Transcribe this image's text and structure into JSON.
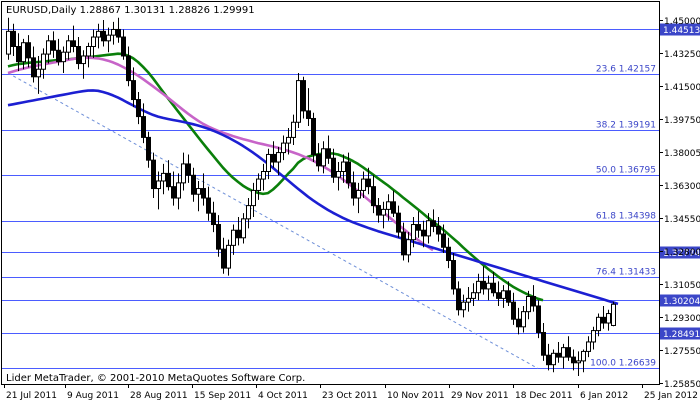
{
  "header": {
    "symbol_line": "EURUSD,Daily  1.28867 1.30131 1.28826 1.29991"
  },
  "footer": {
    "copyright": "Lider MetaTrader, © 2001-2010 MetaQuotes Software Corp."
  },
  "colors": {
    "background": "#ffffff",
    "axis": "#000000",
    "hline": "#4b5cff",
    "fib_text": "#3b46c8",
    "label_box": "#3b46c8",
    "label_text": "#ffffff",
    "candle": "#000000",
    "ma_green": "#0a7f0a",
    "ma_magenta": "#c764c8",
    "ma_blue": "#1c1fd2",
    "trendline": "#6e8fd8"
  },
  "chart_data": {
    "type": "candlestick",
    "title": "EURUSD,Daily",
    "ohlc_header": {
      "open": 1.28867,
      "high": 1.30131,
      "low": 1.28826,
      "close": 1.29991
    },
    "ylim": [
      1.2578,
      1.4595
    ],
    "price_ticks": [
      "1.45000",
      "1.43250",
      "1.41500",
      "1.39750",
      "1.38005",
      "1.36300",
      "1.34550",
      "1.32800",
      "1.31050",
      "1.29300",
      "1.27550",
      "1.25850"
    ],
    "date_ticks": [
      "21 Jul 2011",
      "9 Aug 2011",
      "28 Aug 2011",
      "15 Sep 2011",
      "4 Oct 2011",
      "23 Oct 2011",
      "10 Nov 2011",
      "29 Nov 2011",
      "18 Dec 2011",
      "6 Jan 2012",
      "25 Jan 2012"
    ],
    "candles": [
      [
        1.432,
        1.4512,
        1.429,
        1.444
      ],
      [
        1.444,
        1.448,
        1.431,
        1.436
      ],
      [
        1.436,
        1.443,
        1.423,
        1.428
      ],
      [
        1.428,
        1.44,
        1.424,
        1.438
      ],
      [
        1.438,
        1.442,
        1.425,
        1.43
      ],
      [
        1.43,
        1.436,
        1.417,
        1.42
      ],
      [
        1.42,
        1.431,
        1.411,
        1.424
      ],
      [
        1.424,
        1.435,
        1.419,
        1.432
      ],
      [
        1.432,
        1.442,
        1.427,
        1.439
      ],
      [
        1.439,
        1.444,
        1.43,
        1.434
      ],
      [
        1.434,
        1.44,
        1.426,
        1.428
      ],
      [
        1.428,
        1.436,
        1.422,
        1.433
      ],
      [
        1.433,
        1.442,
        1.429,
        1.439
      ],
      [
        1.439,
        1.447,
        1.433,
        1.436
      ],
      [
        1.436,
        1.441,
        1.424,
        1.427
      ],
      [
        1.427,
        1.434,
        1.419,
        1.431
      ],
      [
        1.431,
        1.438,
        1.425,
        1.436
      ],
      [
        1.436,
        1.445,
        1.43,
        1.441
      ],
      [
        1.441,
        1.448,
        1.435,
        1.444
      ],
      [
        1.444,
        1.45,
        1.436,
        1.439
      ],
      [
        1.439,
        1.446,
        1.433,
        1.442
      ],
      [
        1.442,
        1.449,
        1.437,
        1.445
      ],
      [
        1.445,
        1.4512,
        1.438,
        1.441
      ],
      [
        1.441,
        1.445,
        1.429,
        1.431
      ],
      [
        1.431,
        1.436,
        1.415,
        1.418
      ],
      [
        1.418,
        1.425,
        1.404,
        1.408
      ],
      [
        1.408,
        1.412,
        1.395,
        1.399
      ],
      [
        1.399,
        1.406,
        1.385,
        1.388
      ],
      [
        1.388,
        1.391,
        1.372,
        1.376
      ],
      [
        1.376,
        1.38,
        1.356,
        1.361
      ],
      [
        1.361,
        1.37,
        1.35,
        1.365
      ],
      [
        1.365,
        1.374,
        1.358,
        1.369
      ],
      [
        1.369,
        1.376,
        1.36,
        1.362
      ],
      [
        1.362,
        1.37,
        1.352,
        1.356
      ],
      [
        1.356,
        1.369,
        1.35,
        1.364
      ],
      [
        1.364,
        1.38,
        1.36,
        1.374
      ],
      [
        1.374,
        1.379,
        1.364,
        1.368
      ],
      [
        1.368,
        1.372,
        1.354,
        1.358
      ],
      [
        1.358,
        1.365,
        1.349,
        1.361
      ],
      [
        1.361,
        1.369,
        1.352,
        1.356
      ],
      [
        1.356,
        1.362,
        1.344,
        1.348
      ],
      [
        1.348,
        1.354,
        1.338,
        1.342
      ],
      [
        1.342,
        1.347,
        1.325,
        1.329
      ],
      [
        1.329,
        1.335,
        1.316,
        1.319
      ],
      [
        1.319,
        1.334,
        1.315,
        1.331
      ],
      [
        1.331,
        1.342,
        1.326,
        1.339
      ],
      [
        1.339,
        1.346,
        1.331,
        1.335
      ],
      [
        1.335,
        1.348,
        1.332,
        1.345
      ],
      [
        1.345,
        1.356,
        1.34,
        1.352
      ],
      [
        1.352,
        1.364,
        1.346,
        1.36
      ],
      [
        1.36,
        1.369,
        1.355,
        1.366
      ],
      [
        1.366,
        1.374,
        1.36,
        1.37
      ],
      [
        1.37,
        1.382,
        1.366,
        1.379
      ],
      [
        1.379,
        1.386,
        1.372,
        1.375
      ],
      [
        1.375,
        1.383,
        1.368,
        1.38
      ],
      [
        1.38,
        1.389,
        1.376,
        1.385
      ],
      [
        1.385,
        1.393,
        1.379,
        1.388
      ],
      [
        1.388,
        1.4,
        1.384,
        1.396
      ],
      [
        1.396,
        1.422,
        1.393,
        1.418
      ],
      [
        1.418,
        1.42,
        1.398,
        1.402
      ],
      [
        1.402,
        1.414,
        1.394,
        1.398
      ],
      [
        1.398,
        1.401,
        1.375,
        1.379
      ],
      [
        1.379,
        1.385,
        1.37,
        1.373
      ],
      [
        1.373,
        1.386,
        1.369,
        1.382
      ],
      [
        1.382,
        1.389,
        1.374,
        1.377
      ],
      [
        1.377,
        1.382,
        1.364,
        1.367
      ],
      [
        1.367,
        1.375,
        1.36,
        1.37
      ],
      [
        1.37,
        1.379,
        1.364,
        1.375
      ],
      [
        1.375,
        1.38,
        1.361,
        1.364
      ],
      [
        1.364,
        1.37,
        1.352,
        1.356
      ],
      [
        1.356,
        1.364,
        1.348,
        1.36
      ],
      [
        1.36,
        1.37,
        1.356,
        1.366
      ],
      [
        1.366,
        1.372,
        1.358,
        1.362
      ],
      [
        1.362,
        1.368,
        1.348,
        1.352
      ],
      [
        1.352,
        1.356,
        1.343,
        1.347
      ],
      [
        1.347,
        1.354,
        1.34,
        1.35
      ],
      [
        1.35,
        1.358,
        1.344,
        1.354
      ],
      [
        1.354,
        1.36,
        1.346,
        1.348
      ],
      [
        1.348,
        1.352,
        1.335,
        1.338
      ],
      [
        1.338,
        1.343,
        1.323,
        1.326
      ],
      [
        1.326,
        1.338,
        1.322,
        1.334
      ],
      [
        1.334,
        1.346,
        1.33,
        1.342
      ],
      [
        1.342,
        1.349,
        1.335,
        1.339
      ],
      [
        1.339,
        1.344,
        1.33,
        1.336
      ],
      [
        1.336,
        1.348,
        1.332,
        1.344
      ],
      [
        1.344,
        1.35,
        1.338,
        1.341
      ],
      [
        1.341,
        1.346,
        1.333,
        1.337
      ],
      [
        1.337,
        1.342,
        1.327,
        1.33
      ],
      [
        1.33,
        1.335,
        1.319,
        1.323
      ],
      [
        1.323,
        1.327,
        1.305,
        1.308
      ],
      [
        1.308,
        1.312,
        1.294,
        1.297
      ],
      [
        1.297,
        1.305,
        1.293,
        1.301
      ],
      [
        1.301,
        1.309,
        1.296,
        1.303
      ],
      [
        1.303,
        1.311,
        1.299,
        1.306
      ],
      [
        1.306,
        1.316,
        1.302,
        1.312
      ],
      [
        1.312,
        1.32,
        1.305,
        1.308
      ],
      [
        1.308,
        1.315,
        1.302,
        1.311
      ],
      [
        1.311,
        1.317,
        1.304,
        1.306
      ],
      [
        1.306,
        1.312,
        1.299,
        1.303
      ],
      [
        1.303,
        1.31,
        1.298,
        1.307
      ],
      [
        1.307,
        1.312,
        1.299,
        1.301
      ],
      [
        1.301,
        1.306,
        1.289,
        1.292
      ],
      [
        1.292,
        1.298,
        1.284,
        1.288
      ],
      [
        1.288,
        1.299,
        1.285,
        1.296
      ],
      [
        1.296,
        1.307,
        1.292,
        1.304
      ],
      [
        1.304,
        1.31,
        1.296,
        1.299
      ],
      [
        1.299,
        1.302,
        1.282,
        1.285
      ],
      [
        1.285,
        1.29,
        1.27,
        1.273
      ],
      [
        1.273,
        1.279,
        1.265,
        1.268
      ],
      [
        1.268,
        1.276,
        1.264,
        1.274
      ],
      [
        1.274,
        1.28,
        1.269,
        1.272
      ],
      [
        1.272,
        1.279,
        1.266,
        1.277
      ],
      [
        1.277,
        1.283,
        1.27,
        1.272
      ],
      [
        1.272,
        1.276,
        1.265,
        1.269
      ],
      [
        1.269,
        1.275,
        1.262,
        1.27
      ],
      [
        1.27,
        1.276,
        1.264,
        1.275
      ],
      [
        1.275,
        1.283,
        1.272,
        1.28
      ],
      [
        1.28,
        1.288,
        1.276,
        1.286
      ],
      [
        1.286,
        1.295,
        1.283,
        1.293
      ],
      [
        1.293,
        1.299,
        1.287,
        1.29
      ],
      [
        1.29,
        1.297,
        1.286,
        1.295
      ],
      [
        1.2887,
        1.3013,
        1.2883,
        1.2999
      ]
    ],
    "horizontal_lines": [
      {
        "price": 1.44513,
        "label": "1.44513",
        "boxed": true
      },
      {
        "price": 1.42157,
        "label": "23.6 1.42157",
        "boxed": false
      },
      {
        "price": 1.39191,
        "label": "38.2 1.39191",
        "boxed": false
      },
      {
        "price": 1.36795,
        "label": "50.0 1.36795",
        "boxed": false
      },
      {
        "price": 1.34398,
        "label": "61.8 1.34398",
        "boxed": false
      },
      {
        "price": 1.32774,
        "label": "1.32774",
        "boxed": true
      },
      {
        "price": 1.31433,
        "label": "76.4 1.31433",
        "boxed": false
      },
      {
        "price": 1.30204,
        "label": "1.30204",
        "boxed": true
      },
      {
        "price": 1.28491,
        "label": "1.28491",
        "boxed": true
      },
      {
        "price": 1.26639,
        "label": "100.0 1.26639",
        "boxed": false
      }
    ],
    "series": [
      {
        "kind": "ma",
        "color_key": "ma_green",
        "values": [
          1.4255,
          1.4262,
          1.4267,
          1.427,
          1.4274,
          1.4276,
          1.4278,
          1.428,
          1.4283,
          1.4286,
          1.4288,
          1.429,
          1.4292,
          1.4295,
          1.4298,
          1.43,
          1.4303,
          1.4306,
          1.431,
          1.4313,
          1.4316,
          1.4319,
          1.4322,
          1.432,
          1.4312,
          1.4298,
          1.4278,
          1.4253,
          1.4225,
          1.4192,
          1.4157,
          1.4121,
          1.4086,
          1.4052,
          1.4018,
          1.3984,
          1.395,
          1.3916,
          1.3882,
          1.3849,
          1.3816,
          1.3784,
          1.3752,
          1.372,
          1.3692,
          1.3667,
          1.3645,
          1.3625,
          1.3609,
          1.3596,
          1.3587,
          1.3582,
          1.3586,
          1.3605,
          1.363,
          1.3658,
          1.3688,
          1.3714,
          1.3746,
          1.3765,
          1.3778,
          1.3786,
          1.3791,
          1.3795,
          1.3796,
          1.3795,
          1.379,
          1.378,
          1.3768,
          1.3755,
          1.374,
          1.3722,
          1.3703,
          1.3684,
          1.3664,
          1.3645,
          1.3626,
          1.3605,
          1.3585,
          1.3563,
          1.3542,
          1.3521,
          1.35,
          1.3478,
          1.3456,
          1.3436,
          1.3415,
          1.3394,
          1.3371,
          1.3348,
          1.3325,
          1.33,
          1.3276,
          1.3253,
          1.323,
          1.3208,
          1.3186,
          1.3166,
          1.3146,
          1.3127,
          1.3109,
          1.3092,
          1.3077,
          1.3063,
          1.305,
          1.3039,
          1.3028,
          1.302
        ]
      },
      {
        "kind": "ma",
        "color_key": "ma_magenta",
        "values": [
          1.422,
          1.4228,
          1.4236,
          1.4243,
          1.4249,
          1.4255,
          1.426,
          1.4265,
          1.427,
          1.4275,
          1.428,
          1.4285,
          1.429,
          1.4294,
          1.4298,
          1.43,
          1.4301,
          1.43,
          1.4297,
          1.4292,
          1.4285,
          1.4276,
          1.4265,
          1.4252,
          1.4238,
          1.4223,
          1.4206,
          1.4188,
          1.4169,
          1.415,
          1.413,
          1.411,
          1.4089,
          1.4068,
          1.4047,
          1.4026,
          1.4005,
          1.3986,
          1.3968,
          1.3952,
          1.3938,
          1.3926,
          1.3915,
          1.3905,
          1.3896,
          1.3887,
          1.3879,
          1.3871,
          1.3864,
          1.3857,
          1.385,
          1.3844,
          1.3838,
          1.3832,
          1.3825,
          1.3818,
          1.381,
          1.3801,
          1.3792,
          1.3781,
          1.377,
          1.3757,
          1.3743,
          1.3728,
          1.3712,
          1.3695,
          1.3677,
          1.3658,
          1.3638,
          1.3617,
          1.3596,
          1.3574,
          1.3552,
          1.353,
          1.3508,
          1.3486,
          1.3464,
          1.3442,
          1.342,
          1.3399,
          1.3378,
          1.3358,
          1.3339,
          1.332,
          1.3302,
          1.3285
        ]
      },
      {
        "kind": "ma",
        "color_key": "ma_blue",
        "values": [
          1.405,
          1.4055,
          1.406,
          1.4065,
          1.407,
          1.4075,
          1.408,
          1.4085,
          1.409,
          1.4095,
          1.41,
          1.4105,
          1.411,
          1.4115,
          1.412,
          1.4124,
          1.4127,
          1.4128,
          1.4126,
          1.412,
          1.4112,
          1.4102,
          1.409,
          1.4077,
          1.4063,
          1.4049,
          1.4035,
          1.4022,
          1.401,
          1.3999,
          1.399,
          1.3983,
          1.3977,
          1.3972,
          1.3967,
          1.3962,
          1.3956,
          1.395,
          1.3943,
          1.3935,
          1.3926,
          1.3916,
          1.3905,
          1.3893,
          1.388,
          1.3866,
          1.3851,
          1.3835,
          1.3818,
          1.38,
          1.3781,
          1.3761,
          1.374,
          1.3719,
          1.3697,
          1.3675,
          1.3653,
          1.3631,
          1.3609,
          1.3588,
          1.3567,
          1.3548,
          1.353,
          1.3513,
          1.3497,
          1.3482,
          1.3468,
          1.3455,
          1.3443,
          1.3432,
          1.3422,
          1.3412,
          1.3403,
          1.3394,
          1.3385,
          1.3377,
          1.3369,
          1.3361,
          1.3353,
          1.3345,
          1.3337,
          1.3329,
          1.3321,
          1.3313,
          1.3305,
          1.3297,
          1.3289,
          1.3281,
          1.3273,
          1.3265,
          1.3257,
          1.3249,
          1.3241,
          1.3233,
          1.3225,
          1.3217,
          1.3209,
          1.3201,
          1.3193,
          1.3185,
          1.3177,
          1.3169,
          1.3161,
          1.3153,
          1.3145,
          1.3137,
          1.3129,
          1.3121,
          1.3113,
          1.3105,
          1.3097,
          1.3089,
          1.3081,
          1.3073,
          1.3065,
          1.3057,
          1.3049,
          1.3041,
          1.3033,
          1.3025,
          1.3017,
          1.3009,
          1.3001
        ]
      },
      {
        "kind": "trendline",
        "color_key": "trendline",
        "dashed": true,
        "points": [
          [
            0,
            1.422
          ],
          [
            89,
            1.266
          ]
        ]
      }
    ]
  }
}
